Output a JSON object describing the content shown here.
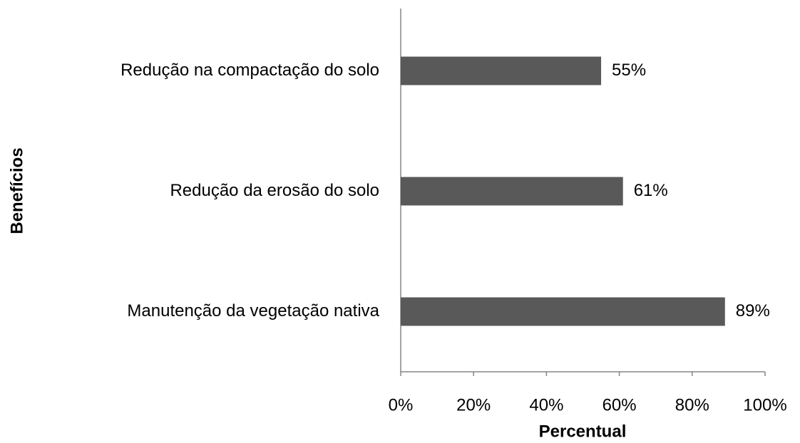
{
  "chart_data": {
    "type": "bar",
    "orientation": "horizontal",
    "x_label": "Percentual",
    "y_label": "Benefícios",
    "categories": [
      "Redução na compactação do solo",
      "Redução da erosão do solo",
      "Manutenção da vegetação nativa"
    ],
    "values": [
      55,
      61,
      89
    ],
    "value_labels": [
      "55%",
      "61%",
      "89%"
    ],
    "color": "#595959",
    "xlim": [
      0,
      100
    ],
    "xticks": [
      {
        "value": 0,
        "label": "0%"
      },
      {
        "value": 20,
        "label": "20%"
      },
      {
        "value": 40,
        "label": "40%"
      },
      {
        "value": 60,
        "label": "60%"
      },
      {
        "value": 80,
        "label": "80%"
      },
      {
        "value": 100,
        "label": "100%"
      }
    ],
    "grid": false
  }
}
